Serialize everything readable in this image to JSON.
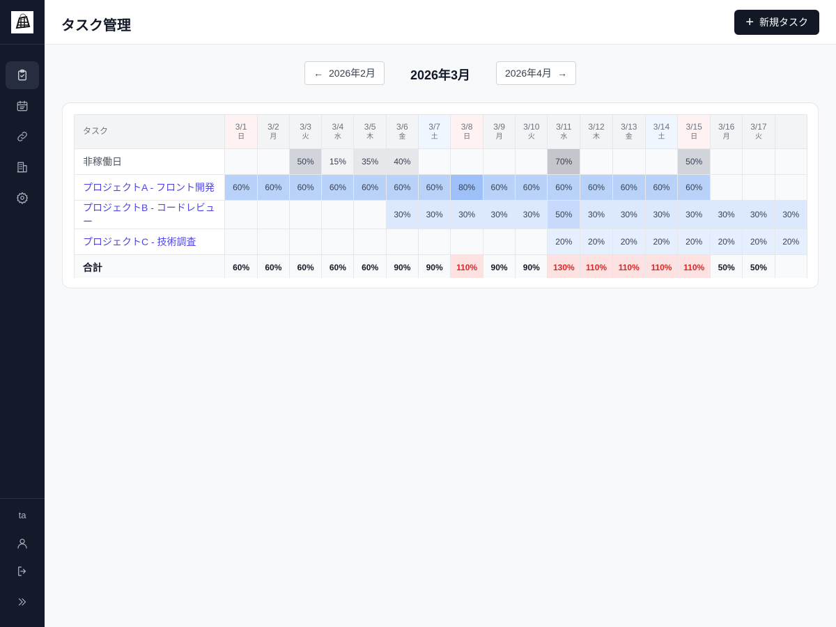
{
  "app": {
    "title": "タスク管理",
    "new_task_label": "新規タスク",
    "user": "ta"
  },
  "month_nav": {
    "prev": "2026年2月",
    "current": "2026年3月",
    "next": "2026年4月"
  },
  "table": {
    "task_header": "タスク",
    "days": [
      {
        "date": "3/1",
        "dow": "日",
        "type": "sun"
      },
      {
        "date": "3/2",
        "dow": "月"
      },
      {
        "date": "3/3",
        "dow": "火"
      },
      {
        "date": "3/4",
        "dow": "水"
      },
      {
        "date": "3/5",
        "dow": "木"
      },
      {
        "date": "3/6",
        "dow": "金"
      },
      {
        "date": "3/7",
        "dow": "土",
        "type": "sat"
      },
      {
        "date": "3/8",
        "dow": "日",
        "type": "sun"
      },
      {
        "date": "3/9",
        "dow": "月"
      },
      {
        "date": "3/10",
        "dow": "火"
      },
      {
        "date": "3/11",
        "dow": "水"
      },
      {
        "date": "3/12",
        "dow": "木"
      },
      {
        "date": "3/13",
        "dow": "金"
      },
      {
        "date": "3/14",
        "dow": "土",
        "type": "sat"
      },
      {
        "date": "3/15",
        "dow": "日",
        "type": "sun"
      },
      {
        "date": "3/16",
        "dow": "月"
      },
      {
        "date": "3/17",
        "dow": "火"
      },
      {
        "date": "",
        "dow": ""
      }
    ],
    "rows": [
      {
        "name": "非稼働日",
        "kind": "off",
        "values": [
          "",
          "",
          "50%",
          "15%",
          "35%",
          "40%",
          "",
          "",
          "",
          "",
          "70%",
          "",
          "",
          "",
          "50%",
          "",
          "",
          ""
        ]
      },
      {
        "name": "プロジェクトA - フロント開発",
        "kind": "proj",
        "values": [
          "60%",
          "60%",
          "60%",
          "60%",
          "60%",
          "60%",
          "60%",
          "80%",
          "60%",
          "60%",
          "60%",
          "60%",
          "60%",
          "60%",
          "60%",
          "",
          "",
          ""
        ]
      },
      {
        "name": "プロジェクトB - コードレビュー",
        "kind": "proj",
        "values": [
          "",
          "",
          "",
          "",
          "",
          "30%",
          "30%",
          "30%",
          "30%",
          "30%",
          "50%",
          "30%",
          "30%",
          "30%",
          "30%",
          "30%",
          "30%",
          "30%"
        ]
      },
      {
        "name": "プロジェクトC - 技術調査",
        "kind": "proj",
        "values": [
          "",
          "",
          "",
          "",
          "",
          "",
          "",
          "",
          "",
          "",
          "20%",
          "20%",
          "20%",
          "20%",
          "20%",
          "20%",
          "20%",
          "20%"
        ]
      }
    ],
    "total": {
      "label": "合計",
      "values": [
        "60%",
        "60%",
        "60%",
        "60%",
        "60%",
        "90%",
        "90%",
        "110%",
        "90%",
        "90%",
        "130%",
        "110%",
        "110%",
        "110%",
        "110%",
        "50%",
        "50%",
        ""
      ]
    }
  },
  "colors": {
    "sidebar": "#141a2a",
    "accent": "#4f46e5",
    "over": "#dc2626"
  }
}
